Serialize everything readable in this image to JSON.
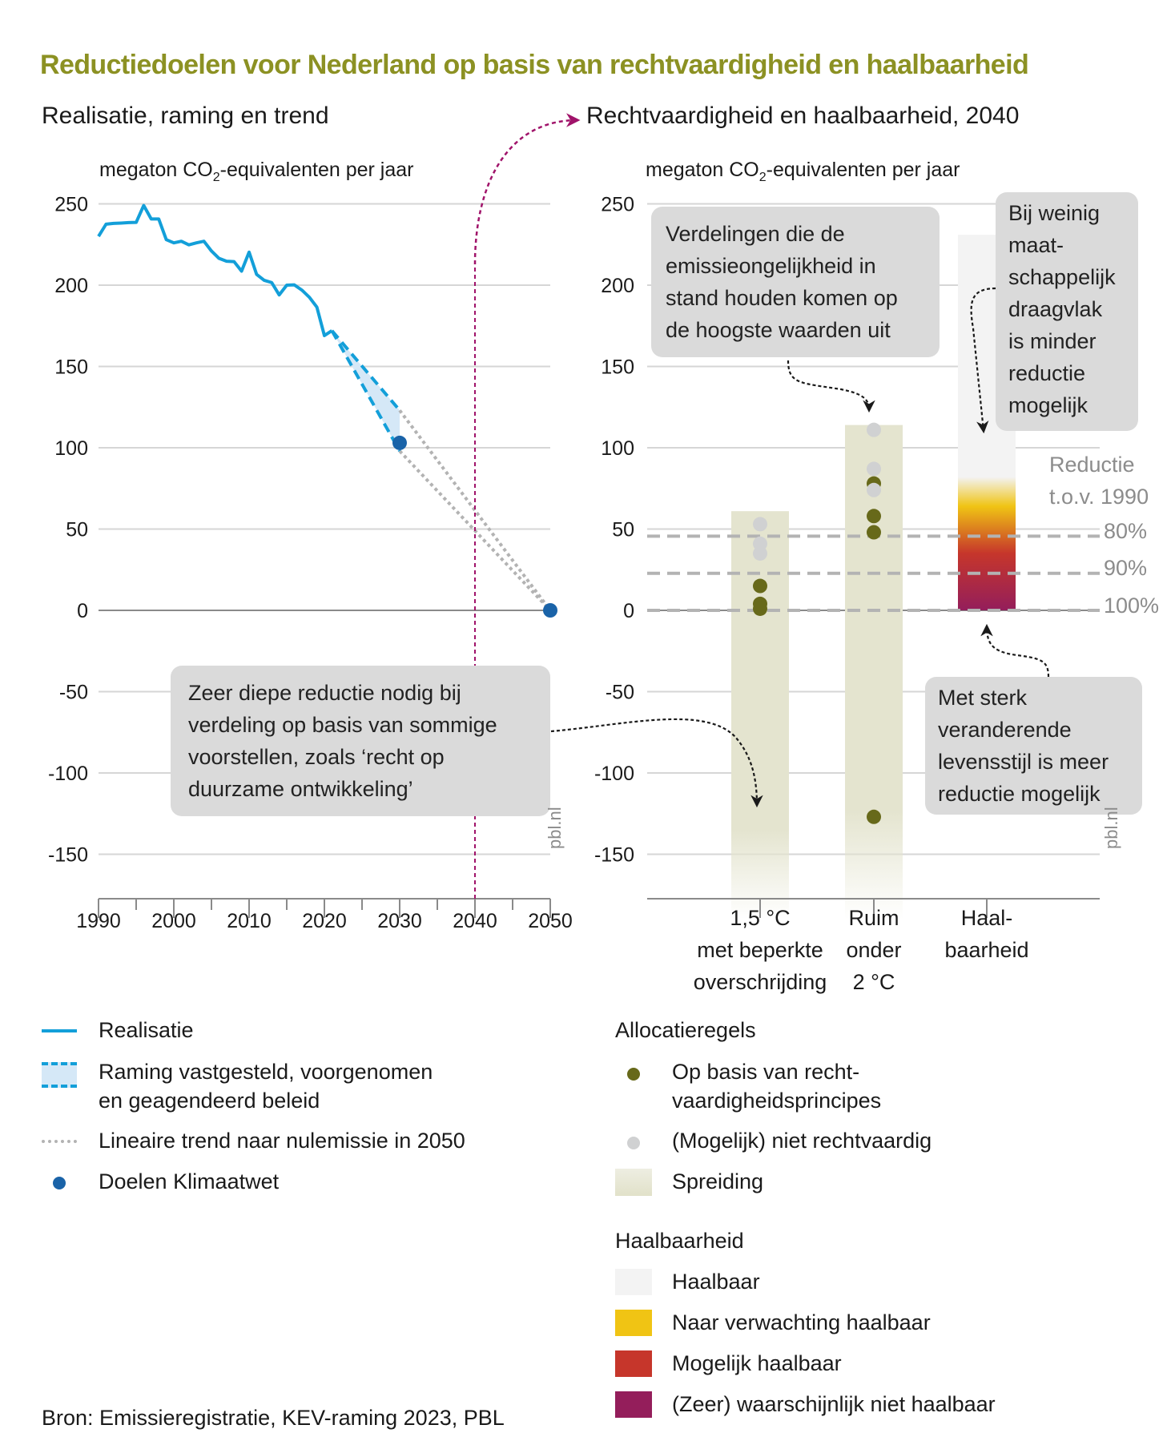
{
  "title": "Reductiedoelen voor Nederland op basis van rechtvaardigheid en haalbaarheid",
  "source": "Bron: Emissieregistratie, KEV-raming 2023, PBL",
  "watermark": "pbl.nl",
  "colors": {
    "title": "#8c9123",
    "realisatie": "#139fd9",
    "raming_fill": "#d5e8f7",
    "trend": "#b3b3b3",
    "doelen": "#1a63a8",
    "rechtvaardig_dot": "#67691a",
    "niet_rechtvaardig_dot": "#d0d1d2",
    "spreiding": "#e4e4cf",
    "haalbaar": "#f3f3f3",
    "naar_verwachting": "#f0c414",
    "mogelijk": "#c6362b",
    "niet_haalbaar": "#941e5b",
    "connector": "#a0136a"
  },
  "chart_data": [
    {
      "type": "line",
      "title": "Realisatie, raming en trend",
      "ylabel": "megaton CO2-equivalenten per jaar",
      "ylabel_main": "megaton CO",
      "ylabel_sub": "2",
      "ylabel_rest": "-equivalenten per jaar",
      "xlim": [
        1990,
        2050
      ],
      "ylim": [
        -170,
        250
      ],
      "yticks": [
        250,
        200,
        150,
        100,
        50,
        0,
        -50,
        -100,
        -150
      ],
      "xticks": [
        1990,
        2000,
        2010,
        2020,
        2030,
        2040,
        2050
      ],
      "grid": true,
      "highlight_year": 2040,
      "series": [
        {
          "name": "Realisatie",
          "style": "solid",
          "x": [
            1990,
            1991,
            1992,
            1993,
            1994,
            1995,
            1996,
            1997,
            1998,
            1999,
            2000,
            2001,
            2002,
            2003,
            2004,
            2005,
            2006,
            2007,
            2008,
            2009,
            2010,
            2011,
            2012,
            2013,
            2014,
            2015,
            2016,
            2017,
            2018,
            2019,
            2020,
            2021
          ],
          "y": [
            230,
            237.5,
            238,
            238.2,
            238.5,
            238.6,
            249,
            240.7,
            240.7,
            228,
            226,
            227,
            224.8,
            226,
            227,
            221,
            216.5,
            214.7,
            214.5,
            208.6,
            220.3,
            206.6,
            203,
            201.6,
            194,
            200,
            200.2,
            197,
            192.6,
            186.5,
            169,
            172
          ]
        },
        {
          "name": "Raming vastgesteld, voorgenomen en geagendeerd beleid",
          "style": "dashed-band",
          "x": [
            2021,
            2030
          ],
          "upper": [
            172,
            123
          ],
          "lower": [
            172,
            98
          ]
        },
        {
          "name": "Lineaire trend naar nulemissie in 2050",
          "style": "dotted",
          "lines": [
            {
              "x": [
                2030,
                2050
              ],
              "y": [
                123,
                0
              ]
            },
            {
              "x": [
                2030,
                2050
              ],
              "y": [
                98,
                0
              ]
            }
          ]
        },
        {
          "name": "Doelen Klimaatwet",
          "style": "points",
          "x": [
            2030,
            2050
          ],
          "y": [
            103,
            0
          ]
        }
      ],
      "annotation": "Zeer diepe reductie nodig bij verdeling op basis van sommige voorstellen, zoals ‘recht op duurzame ontwikkeling’",
      "annotation_lines": [
        "Zeer diepe reductie nodig bij",
        "verdeling op basis van sommige",
        "voorstellen, zoals ‘recht op",
        "duurzame ontwikkeling’"
      ]
    },
    {
      "type": "scatter",
      "title": "Rechtvaardigheid en haalbaarheid, 2040",
      "ylabel": "megaton CO2-equivalenten per jaar",
      "ylabel_main": "megaton CO",
      "ylabel_sub": "2",
      "ylabel_rest": "-equivalenten per jaar",
      "ylim": [
        -170,
        250
      ],
      "yticks": [
        250,
        200,
        150,
        100,
        50,
        0,
        -50,
        -100,
        -150
      ],
      "grid": true,
      "categories": [
        {
          "lines": [
            "1,5 °C",
            "met beperkte",
            "overschrijding"
          ]
        },
        {
          "lines": [
            "Ruim",
            "onder",
            "2 °C"
          ]
        },
        {
          "lines": [
            "Haal-",
            "baarheid"
          ]
        }
      ],
      "spreiding": [
        {
          "category": 0,
          "top": 61,
          "bottom": "below axis (fading)"
        },
        {
          "category": 1,
          "top": 114,
          "bottom": "below axis (fading)"
        }
      ],
      "points": [
        {
          "category": 0,
          "value": 53,
          "type": "niet_rechtvaardig"
        },
        {
          "category": 0,
          "value": 41,
          "type": "niet_rechtvaardig"
        },
        {
          "category": 0,
          "value": 35,
          "type": "niet_rechtvaardig"
        },
        {
          "category": 0,
          "value": 15,
          "type": "rechtvaardig"
        },
        {
          "category": 0,
          "value": 4,
          "type": "rechtvaardig"
        },
        {
          "category": 0,
          "value": 1,
          "type": "rechtvaardig"
        },
        {
          "category": 1,
          "value": 111,
          "type": "niet_rechtvaardig"
        },
        {
          "category": 1,
          "value": 87,
          "type": "niet_rechtvaardig"
        },
        {
          "category": 1,
          "value": 78,
          "type": "rechtvaardig"
        },
        {
          "category": 1,
          "value": 74,
          "type": "niet_rechtvaardig"
        },
        {
          "category": 1,
          "value": 58,
          "type": "rechtvaardig"
        },
        {
          "category": 1,
          "value": 48,
          "type": "rechtvaardig"
        },
        {
          "category": 1,
          "value": -127,
          "type": "rechtvaardig"
        }
      ],
      "haalbaarheid_bar": {
        "category": 2,
        "top": 231,
        "stops": [
          {
            "value": 231,
            "level": "haalbaar"
          },
          {
            "value": 82,
            "level": "haalbaar"
          },
          {
            "value": 64,
            "level": "naar_verwachting"
          },
          {
            "value": 35,
            "level": "mogelijk"
          },
          {
            "value": 0,
            "level": "niet_haalbaar"
          }
        ]
      },
      "reference_lines": {
        "title_lines": [
          "Reductie",
          "t.o.v. 1990"
        ],
        "lines": [
          {
            "label": "80%",
            "value": 45.6
          },
          {
            "label": "90%",
            "value": 22.8
          },
          {
            "label": "100%",
            "value": 0
          }
        ]
      },
      "annotations": [
        {
          "id": "hoogste",
          "lines": [
            "Verdelingen die de",
            "emissieongelijkheid in",
            "stand houden komen op",
            "de hoogste waarden uit"
          ]
        },
        {
          "id": "draagvlak",
          "lines": [
            "Bij weinig",
            "maat-",
            "schappelijk",
            "draagvlak",
            "is minder",
            "reductie",
            "mogelijk"
          ]
        },
        {
          "id": "levensstijl",
          "lines": [
            "Met sterk",
            "veranderende",
            "levensstijl is meer",
            "reductie mogelijk"
          ]
        }
      ]
    }
  ],
  "legend_left": [
    {
      "label_lines": [
        "Realisatie"
      ],
      "symbol": "solid-line"
    },
    {
      "label_lines": [
        "Raming vastgesteld, voorgenomen",
        "en geagendeerd beleid"
      ],
      "symbol": "dashed-band"
    },
    {
      "label_lines": [
        "Lineaire trend naar nulemissie in 2050"
      ],
      "symbol": "dotted-line"
    },
    {
      "label_lines": [
        "Doelen Klimaatwet"
      ],
      "symbol": "dot"
    }
  ],
  "legend_right": {
    "allocatie_title": "Allocatieregels",
    "allocatie": [
      {
        "label_lines": [
          "Op basis van recht-",
          "vaardigheidsprincipes"
        ],
        "symbol": "green-dot"
      },
      {
        "label_lines": [
          "(Mogelijk) niet rechtvaardig"
        ],
        "symbol": "grey-dot"
      },
      {
        "label_lines": [
          "Spreiding"
        ],
        "symbol": "spreiding-swatch"
      }
    ],
    "haalbaarheid_title": "Haalbaarheid",
    "haalbaarheid": [
      {
        "label": "Haalbaar",
        "color_key": "haalbaar"
      },
      {
        "label": "Naar verwachting haalbaar",
        "color_key": "naar_verwachting"
      },
      {
        "label": "Mogelijk haalbaar",
        "color_key": "mogelijk"
      },
      {
        "label": "(Zeer) waarschijnlijk niet haalbaar",
        "color_key": "niet_haalbaar"
      }
    ]
  }
}
